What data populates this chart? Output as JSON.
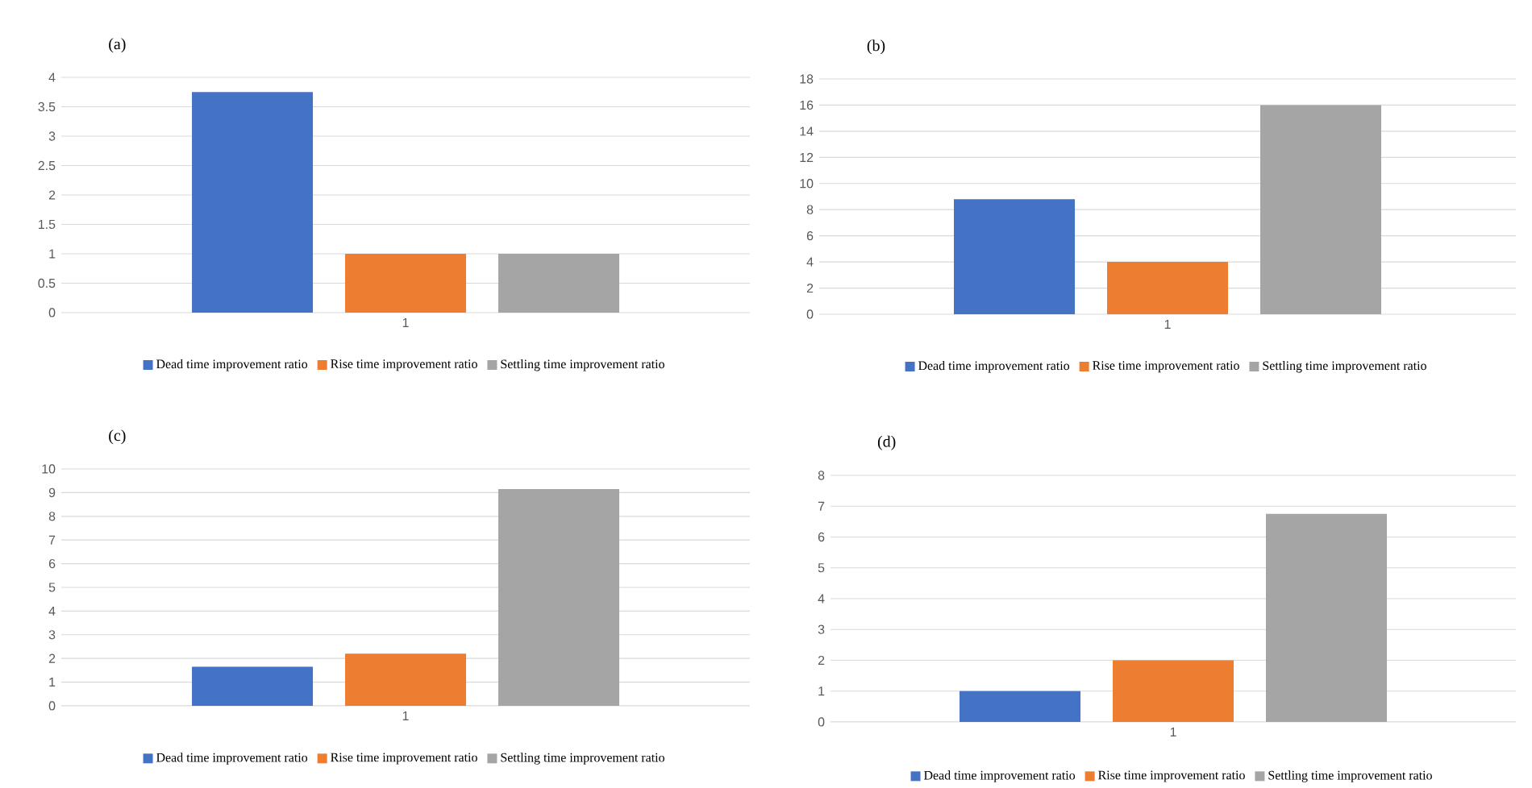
{
  "chart_data": [
    {
      "type": "bar",
      "title": "(a)",
      "categories": [
        "1"
      ],
      "ylim": [
        0,
        4
      ],
      "yticks": [
        0,
        0.5,
        1,
        1.5,
        2,
        2.5,
        3,
        3.5,
        4
      ],
      "grid": "y",
      "legend": "bottom",
      "series": [
        {
          "name": "Dead time improvement ratio",
          "color": "#4472c4",
          "values": [
            3.75
          ]
        },
        {
          "name": "Rise time improvement ratio",
          "color": "#ed7d31",
          "values": [
            1
          ]
        },
        {
          "name": "Settling time improvement ratio",
          "color": "#a5a5a5",
          "values": [
            1
          ]
        }
      ]
    },
    {
      "type": "bar",
      "title": "(b)",
      "categories": [
        "1"
      ],
      "ylim": [
        0,
        18
      ],
      "yticks": [
        0,
        2,
        4,
        6,
        8,
        10,
        12,
        14,
        16,
        18
      ],
      "grid": "y",
      "legend": "bottom",
      "series": [
        {
          "name": "Dead time improvement ratio",
          "color": "#4472c4",
          "values": [
            8.8
          ]
        },
        {
          "name": "Rise time improvement ratio",
          "color": "#ed7d31",
          "values": [
            4
          ]
        },
        {
          "name": "Settling time improvement ratio",
          "color": "#a5a5a5",
          "values": [
            16
          ]
        }
      ]
    },
    {
      "type": "bar",
      "title": "(c)",
      "categories": [
        "1"
      ],
      "ylim": [
        0,
        10
      ],
      "yticks": [
        0,
        1,
        2,
        3,
        4,
        5,
        6,
        7,
        8,
        9,
        10
      ],
      "grid": "y",
      "legend": "bottom",
      "series": [
        {
          "name": "Dead time improvement ratio",
          "color": "#4472c4",
          "values": [
            1.65
          ]
        },
        {
          "name": "Rise time improvement ratio",
          "color": "#ed7d31",
          "values": [
            2.2
          ]
        },
        {
          "name": "Settling time improvement ratio",
          "color": "#a5a5a5",
          "values": [
            9.15
          ]
        }
      ]
    },
    {
      "type": "bar",
      "title": "(d)",
      "categories": [
        "1"
      ],
      "ylim": [
        0,
        8
      ],
      "yticks": [
        0,
        1,
        2,
        3,
        4,
        5,
        6,
        7,
        8
      ],
      "grid": "y",
      "legend": "bottom",
      "series": [
        {
          "name": "Dead time improvement ratio",
          "color": "#4472c4",
          "values": [
            1
          ]
        },
        {
          "name": "Rise time improvement ratio",
          "color": "#ed7d31",
          "values": [
            2
          ]
        },
        {
          "name": "Settling time improvement ratio",
          "color": "#a5a5a5",
          "values": [
            6.75
          ]
        }
      ]
    }
  ]
}
